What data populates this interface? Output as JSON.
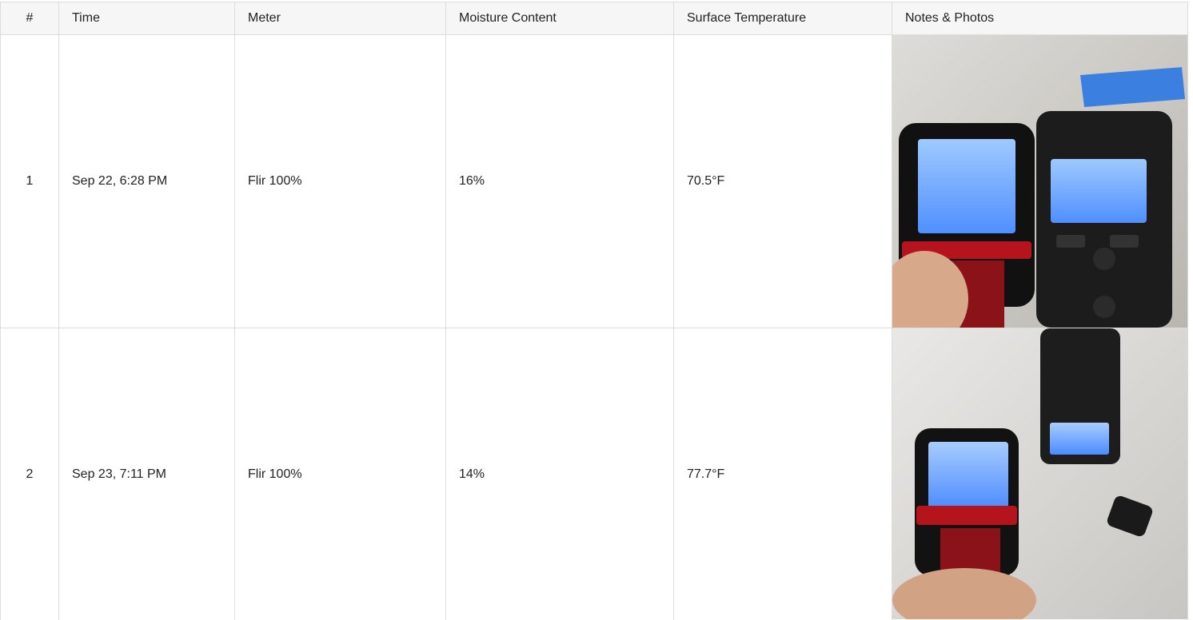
{
  "table": {
    "headers": [
      "#",
      "Time",
      "Meter",
      "Moisture Content",
      "Surface Temperature",
      "Notes & Photos"
    ],
    "rows": [
      [
        "1",
        "Sep 22, 6:28 PM",
        "Flir 100%",
        "16%",
        "70.5°F"
      ],
      [
        "2",
        "Sep 23, 7:11 PM",
        "Flir 100%",
        "14%",
        "77.7°F"
      ]
    ]
  }
}
